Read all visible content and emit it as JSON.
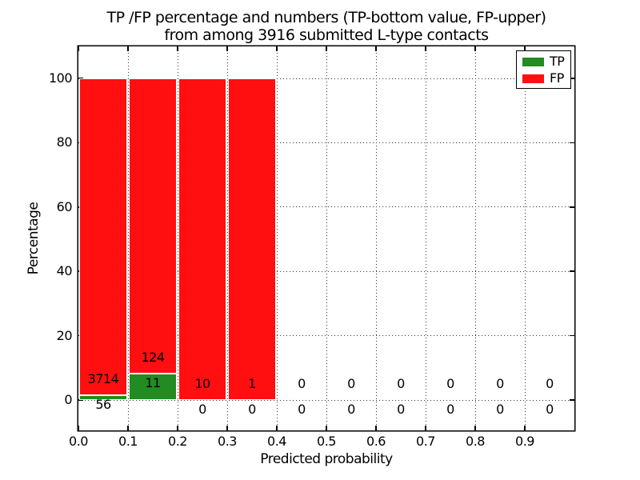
{
  "chart_data": {
    "type": "bar",
    "stacked": true,
    "title_line1": "TP /FP percentage and numbers (TP-bottom value, FP-upper)",
    "title_line2": "from among 3916 submitted L-type contacts",
    "xlabel": "Predicted probability",
    "ylabel": "Percentage",
    "x_tick_labels": [
      "0.0",
      "0.1",
      "0.2",
      "0.3",
      "0.4",
      "0.5",
      "0.6",
      "0.7",
      "0.8",
      "0.9"
    ],
    "y_tick_labels": [
      "0",
      "20",
      "40",
      "60",
      "80",
      "100"
    ],
    "xlim": [
      0.0,
      1.0
    ],
    "ylim": [
      -10,
      110
    ],
    "grid": "dotted",
    "legend_position": "upper-right",
    "legend": [
      {
        "label": "TP",
        "color": "#228b22"
      },
      {
        "label": "FP",
        "color": "#ff0f0f"
      }
    ],
    "total_submitted": 3916,
    "bins": [
      {
        "x_start": 0.0,
        "x_end": 0.1,
        "tp": 56,
        "fp": 3714
      },
      {
        "x_start": 0.1,
        "x_end": 0.2,
        "tp": 11,
        "fp": 124
      },
      {
        "x_start": 0.2,
        "x_end": 0.3,
        "tp": 0,
        "fp": 10
      },
      {
        "x_start": 0.3,
        "x_end": 0.4,
        "tp": 0,
        "fp": 1
      },
      {
        "x_start": 0.4,
        "x_end": 0.5,
        "tp": 0,
        "fp": 0
      },
      {
        "x_start": 0.5,
        "x_end": 0.6,
        "tp": 0,
        "fp": 0
      },
      {
        "x_start": 0.6,
        "x_end": 0.7,
        "tp": 0,
        "fp": 0
      },
      {
        "x_start": 0.7,
        "x_end": 0.8,
        "tp": 0,
        "fp": 0
      },
      {
        "x_start": 0.8,
        "x_end": 0.9,
        "tp": 0,
        "fp": 0
      },
      {
        "x_start": 0.9,
        "x_end": 1.0,
        "tp": 0,
        "fp": 0
      }
    ]
  }
}
